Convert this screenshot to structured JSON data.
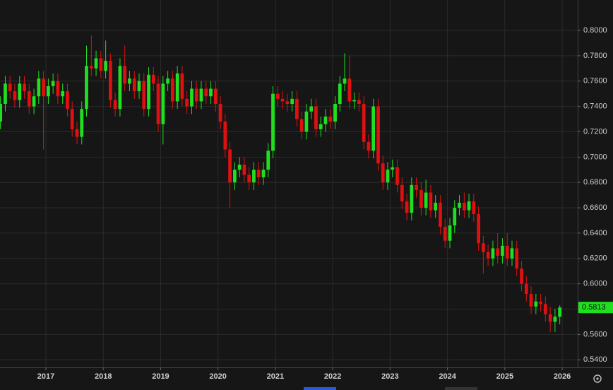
{
  "chart_data": {
    "type": "candlestick",
    "x": [
      2016.208,
      2016.292,
      2016.375,
      2016.458,
      2016.542,
      2016.625,
      2016.708,
      2016.792,
      2016.875,
      2016.958,
      2017.042,
      2017.125,
      2017.208,
      2017.292,
      2017.375,
      2017.458,
      2017.542,
      2017.625,
      2017.708,
      2017.792,
      2017.875,
      2017.958,
      2018.042,
      2018.125,
      2018.208,
      2018.292,
      2018.375,
      2018.458,
      2018.542,
      2018.625,
      2018.708,
      2018.792,
      2018.875,
      2018.958,
      2019.042,
      2019.125,
      2019.208,
      2019.292,
      2019.375,
      2019.458,
      2019.542,
      2019.625,
      2019.708,
      2019.792,
      2019.875,
      2019.958,
      2020.042,
      2020.125,
      2020.208,
      2020.292,
      2020.375,
      2020.458,
      2020.542,
      2020.625,
      2020.708,
      2020.792,
      2020.875,
      2020.958,
      2021.042,
      2021.125,
      2021.208,
      2021.292,
      2021.375,
      2021.458,
      2021.542,
      2021.625,
      2021.708,
      2021.792,
      2021.875,
      2021.958,
      2022.042,
      2022.125,
      2022.208,
      2022.292,
      2022.375,
      2022.458,
      2022.542,
      2022.625,
      2022.708,
      2022.792,
      2022.875,
      2022.958,
      2023.042,
      2023.125,
      2023.208,
      2023.292,
      2023.375,
      2023.458,
      2023.542,
      2023.625,
      2023.708,
      2023.792,
      2023.875,
      2023.958,
      2024.042,
      2024.125,
      2024.208,
      2024.292,
      2024.375,
      2024.458,
      2024.542,
      2024.625,
      2024.708,
      2024.792,
      2024.875,
      2024.958,
      2025.042,
      2025.125,
      2025.208,
      2025.292,
      2025.375,
      2025.458,
      2025.542,
      2025.625,
      2025.708,
      2025.792,
      2025.875,
      2025.958
    ],
    "open": [
      0.728,
      0.742,
      0.758,
      0.752,
      0.745,
      0.758,
      0.752,
      0.74,
      0.748,
      0.762,
      0.748,
      0.756,
      0.76,
      0.748,
      0.752,
      0.738,
      0.722,
      0.716,
      0.738,
      0.772,
      0.77,
      0.778,
      0.768,
      0.776,
      0.745,
      0.738,
      0.772,
      0.758,
      0.762,
      0.752,
      0.76,
      0.738,
      0.765,
      0.758,
      0.726,
      0.758,
      0.762,
      0.744,
      0.766,
      0.746,
      0.74,
      0.754,
      0.744,
      0.754,
      0.748,
      0.754,
      0.742,
      0.728,
      0.706,
      0.68,
      0.69,
      0.694,
      0.686,
      0.68,
      0.69,
      0.684,
      0.69,
      0.705,
      0.75,
      0.746,
      0.744,
      0.742,
      0.746,
      0.73,
      0.72,
      0.736,
      0.74,
      0.722,
      0.726,
      0.732,
      0.728,
      0.742,
      0.758,
      0.762,
      0.744,
      0.745,
      0.742,
      0.712,
      0.705,
      0.74,
      0.695,
      0.68,
      0.69,
      0.692,
      0.678,
      0.665,
      0.656,
      0.678,
      0.674,
      0.66,
      0.672,
      0.658,
      0.664,
      0.645,
      0.634,
      0.646,
      0.66,
      0.664,
      0.658,
      0.665,
      0.655,
      0.632,
      0.625,
      0.62,
      0.628,
      0.622,
      0.63,
      0.62,
      0.628,
      0.612,
      0.6,
      0.592,
      0.582,
      0.586,
      0.584,
      0.576,
      0.57,
      0.574
    ],
    "high": [
      0.748,
      0.764,
      0.764,
      0.758,
      0.764,
      0.764,
      0.758,
      0.754,
      0.768,
      0.768,
      0.762,
      0.766,
      0.766,
      0.758,
      0.758,
      0.744,
      0.728,
      0.744,
      0.788,
      0.796,
      0.784,
      0.784,
      0.792,
      0.782,
      0.751,
      0.778,
      0.788,
      0.768,
      0.768,
      0.766,
      0.766,
      0.771,
      0.771,
      0.764,
      0.764,
      0.768,
      0.768,
      0.772,
      0.772,
      0.752,
      0.76,
      0.76,
      0.76,
      0.76,
      0.76,
      0.76,
      0.748,
      0.734,
      0.712,
      0.696,
      0.7,
      0.7,
      0.692,
      0.696,
      0.696,
      0.696,
      0.711,
      0.756,
      0.756,
      0.752,
      0.75,
      0.752,
      0.752,
      0.736,
      0.742,
      0.746,
      0.746,
      0.732,
      0.738,
      0.738,
      0.748,
      0.764,
      0.782,
      0.78,
      0.751,
      0.751,
      0.748,
      0.718,
      0.746,
      0.746,
      0.701,
      0.696,
      0.698,
      0.698,
      0.684,
      0.671,
      0.684,
      0.684,
      0.68,
      0.682,
      0.678,
      0.67,
      0.67,
      0.651,
      0.652,
      0.666,
      0.67,
      0.672,
      0.671,
      0.671,
      0.661,
      0.638,
      0.631,
      0.634,
      0.64,
      0.636,
      0.64,
      0.634,
      0.634,
      0.618,
      0.606,
      0.598,
      0.592,
      0.592,
      0.59,
      0.582,
      0.58,
      0.583
    ],
    "low": [
      0.722,
      0.736,
      0.746,
      0.739,
      0.739,
      0.746,
      0.734,
      0.734,
      0.742,
      0.706,
      0.742,
      0.75,
      0.742,
      0.742,
      0.732,
      0.716,
      0.71,
      0.71,
      0.732,
      0.764,
      0.764,
      0.762,
      0.762,
      0.739,
      0.732,
      0.732,
      0.752,
      0.752,
      0.746,
      0.746,
      0.732,
      0.732,
      0.752,
      0.72,
      0.71,
      0.752,
      0.738,
      0.738,
      0.74,
      0.734,
      0.734,
      0.738,
      0.738,
      0.742,
      0.742,
      0.736,
      0.722,
      0.7,
      0.66,
      0.674,
      0.684,
      0.68,
      0.674,
      0.674,
      0.678,
      0.678,
      0.684,
      0.699,
      0.74,
      0.738,
      0.736,
      0.736,
      0.724,
      0.714,
      0.714,
      0.73,
      0.716,
      0.716,
      0.72,
      0.722,
      0.722,
      0.736,
      0.752,
      0.738,
      0.738,
      0.736,
      0.706,
      0.699,
      0.699,
      0.689,
      0.674,
      0.674,
      0.684,
      0.672,
      0.659,
      0.65,
      0.65,
      0.668,
      0.654,
      0.654,
      0.652,
      0.652,
      0.639,
      0.628,
      0.628,
      0.64,
      0.654,
      0.652,
      0.652,
      0.649,
      0.626,
      0.608,
      0.614,
      0.614,
      0.616,
      0.616,
      0.614,
      0.614,
      0.606,
      0.594,
      0.586,
      0.576,
      0.576,
      0.578,
      0.57,
      0.562,
      0.562,
      0.568
    ],
    "close": [
      0.742,
      0.758,
      0.752,
      0.745,
      0.758,
      0.752,
      0.74,
      0.748,
      0.762,
      0.748,
      0.756,
      0.76,
      0.748,
      0.752,
      0.738,
      0.722,
      0.716,
      0.738,
      0.772,
      0.77,
      0.778,
      0.768,
      0.776,
      0.745,
      0.738,
      0.772,
      0.758,
      0.762,
      0.752,
      0.76,
      0.738,
      0.765,
      0.758,
      0.726,
      0.758,
      0.762,
      0.744,
      0.766,
      0.746,
      0.74,
      0.754,
      0.744,
      0.754,
      0.748,
      0.754,
      0.742,
      0.728,
      0.706,
      0.68,
      0.69,
      0.694,
      0.686,
      0.68,
      0.69,
      0.684,
      0.69,
      0.705,
      0.75,
      0.746,
      0.744,
      0.742,
      0.746,
      0.73,
      0.72,
      0.736,
      0.74,
      0.722,
      0.726,
      0.732,
      0.728,
      0.742,
      0.758,
      0.762,
      0.744,
      0.745,
      0.742,
      0.712,
      0.705,
      0.74,
      0.695,
      0.68,
      0.69,
      0.692,
      0.678,
      0.665,
      0.656,
      0.678,
      0.674,
      0.66,
      0.672,
      0.658,
      0.664,
      0.645,
      0.634,
      0.646,
      0.66,
      0.664,
      0.658,
      0.665,
      0.655,
      0.632,
      0.625,
      0.62,
      0.628,
      0.622,
      0.63,
      0.62,
      0.628,
      0.612,
      0.6,
      0.592,
      0.582,
      0.586,
      0.584,
      0.576,
      0.57,
      0.574,
      0.5813
    ],
    "up_color": "#1fe01f",
    "down_color": "#e01010",
    "xlim": [
      2016.2,
      2026.27
    ],
    "xticks": [
      2017,
      2018,
      2019,
      2020,
      2021,
      2022,
      2023,
      2024,
      2025,
      2026
    ],
    "ylim": [
      0.534,
      0.824
    ],
    "yticks": [
      {
        "value": 0.54,
        "label": "0.5400"
      },
      {
        "value": 0.56,
        "label": "0.5600"
      },
      {
        "value": 0.58,
        "label": "0.5800"
      },
      {
        "value": 0.6,
        "label": "0.6000"
      },
      {
        "value": 0.62,
        "label": "0.6200"
      },
      {
        "value": 0.64,
        "label": "0.6400"
      },
      {
        "value": 0.66,
        "label": "0.6600"
      },
      {
        "value": 0.68,
        "label": "0.6800"
      },
      {
        "value": 0.7,
        "label": "0.7000"
      },
      {
        "value": 0.72,
        "label": "0.7200"
      },
      {
        "value": 0.74,
        "label": "0.7400"
      },
      {
        "value": 0.76,
        "label": "0.7600"
      },
      {
        "value": 0.78,
        "label": "0.7800"
      },
      {
        "value": 0.8,
        "label": "0.8000"
      }
    ],
    "grid": true
  }
}
